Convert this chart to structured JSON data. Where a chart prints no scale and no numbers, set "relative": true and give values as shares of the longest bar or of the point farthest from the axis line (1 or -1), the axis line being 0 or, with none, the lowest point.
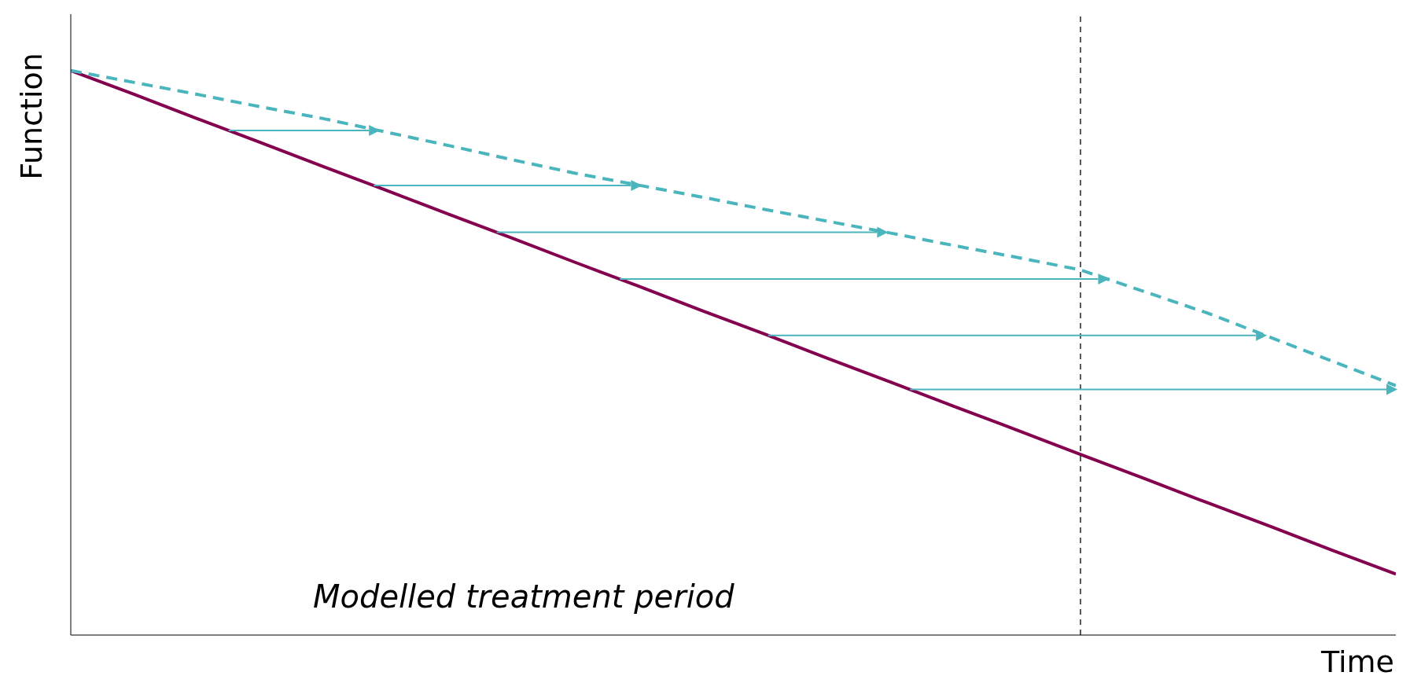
{
  "chart_data": {
    "type": "line",
    "relative": true,
    "xlabel": "Time",
    "ylabel": "Function",
    "marker": "none",
    "categories": [
      null,
      null,
      null,
      null,
      null,
      null,
      null,
      null,
      null,
      null,
      null,
      null,
      null,
      null,
      null,
      null,
      null,
      null,
      null,
      null,
      null,
      null
    ],
    "series": [
      {
        "color": "#84004f",
        "line_style": "solid",
        "values": [
          1,
          0.958,
          0.915,
          0.873,
          0.83,
          0.788,
          0.745,
          0.703,
          0.66,
          0.618,
          0.575,
          0.533,
          0.49,
          0.448,
          0.405,
          0.363,
          0.32,
          0.278,
          0.235,
          0.193,
          0.15,
          0.108
        ]
      },
      {
        "color": "#4ab5bd",
        "line_style": "dashed",
        "values": [
          1,
          0.979,
          0.958,
          0.936,
          0.915,
          0.891,
          0.867,
          0.842,
          0.818,
          0.797,
          0.776,
          0.754,
          0.733,
          0.712,
          0.69,
          0.669,
          0.647,
          0.609,
          0.571,
          0.528,
          0.485,
          0.442
        ]
      }
    ],
    "annotations": [
      "Modelled treatment period"
    ]
  }
}
